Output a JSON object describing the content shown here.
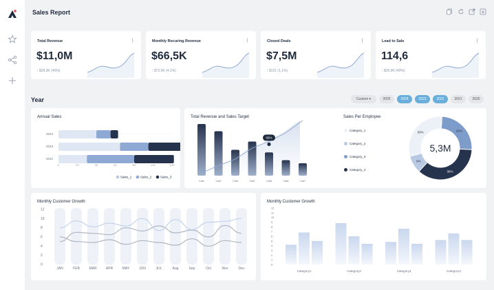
{
  "header": {
    "title": "Sales Report"
  },
  "kpis": [
    {
      "title": "Total Revenue",
      "value": "$11,0M",
      "delta": "$28,3K (40%)"
    },
    {
      "title": "Monthly Recuring Revenue",
      "value": "$66,5K",
      "delta": "$72,5K (4,1%)"
    },
    {
      "title": "Closed Deals",
      "value": "$7,5M",
      "delta": "$121 (1,1%)"
    },
    {
      "title": "Lead to Sale",
      "value": "114,6",
      "delta": "$36,9K (40%)"
    }
  ],
  "year": {
    "label": "Year",
    "filters": [
      "Custom",
      "2025",
      "2024",
      "2023",
      "2022",
      "2021",
      "2020"
    ],
    "active": [
      "2024",
      "2023",
      "2022"
    ]
  },
  "annual_sales": {
    "title": "Annual Sales"
  },
  "revenue_target": {
    "title": "Total Revenue and Sales Target",
    "callout": "65%"
  },
  "sales_per_employee": {
    "title": "Sales Per Employee",
    "center_value": "5,3M",
    "legend": [
      "Category_1",
      "Category_2",
      "Category_3",
      "Category_4"
    ]
  },
  "growth_line": {
    "title": "Monthly Customer Growth"
  },
  "growth_bars": {
    "title": "Monthly Customer Growth"
  },
  "colors": {
    "navy": "#26334d",
    "blue": "#8ea9d3",
    "light": "#dfe7f4",
    "accent": "#6aaedc"
  },
  "chart_data": [
    {
      "type": "bar",
      "orientation": "horizontal",
      "stacked": true,
      "title": "Annual Sales",
      "categories": [
        "2024",
        "2023",
        "2022"
      ],
      "series": [
        {
          "name": "Sales_1",
          "values": [
            40,
            65,
            30
          ]
        },
        {
          "name": "Sales_2",
          "values": [
            15,
            30,
            50
          ]
        },
        {
          "name": "Sales_3",
          "values": [
            8,
            38,
            42
          ]
        }
      ],
      "x_ticks": [
        "0",
        "20",
        "40",
        "60",
        "80",
        "100",
        "120"
      ],
      "legend": "bottom-right"
    },
    {
      "type": "bar",
      "title": "Total Revenue and Sales Target",
      "categories": [
        "Cat1",
        "Cat2",
        "Cat3",
        "Cat4",
        "Cat5",
        "Cat6",
        "Cat7"
      ],
      "values": [
        100,
        86,
        50,
        66,
        45,
        30,
        24
      ],
      "line_values": [
        5,
        18,
        30,
        50,
        62,
        78,
        100
      ],
      "y_right_ticks": [
        "100%",
        "90%",
        "80%",
        "70%",
        "60%",
        "50%",
        "40%",
        "30%",
        "20%",
        "10%",
        "0%"
      ],
      "annotation": "65%"
    },
    {
      "type": "pie",
      "title": "Sales Per Employee",
      "categories": [
        "Category_1",
        "Category_2",
        "Category_3",
        "Category_4"
      ],
      "values": [
        30,
        9,
        25,
        36
      ],
      "labels": [
        "30%",
        "9%",
        "25%",
        "36%"
      ]
    },
    {
      "type": "line",
      "title": "Monthly Customer Growth",
      "categories": [
        "JAN",
        "FEB",
        "MAR",
        "APR",
        "MAY",
        "JUN",
        "JUL",
        "Aug",
        "Sep",
        "Oct",
        "Nov",
        "Dec"
      ],
      "y_ticks": [
        "12",
        "10",
        "8",
        "6",
        "4",
        "2",
        "0"
      ],
      "ylim": [
        0,
        12
      ],
      "series": [
        {
          "values": [
            5.0,
            7.0,
            6.8,
            6.5,
            8.0,
            7.3,
            8.4,
            6.9,
            7.5,
            6.0,
            8.5,
            6.8
          ]
        },
        {
          "values": [
            8.0,
            9.5,
            8.2,
            9.0,
            8.4,
            10.0,
            7.4,
            9.8,
            7.6,
            9.2,
            9.4,
            10.0
          ]
        },
        {
          "values": [
            6.0,
            5.0,
            4.8,
            5.4,
            4.4,
            5.2,
            4.8,
            4.2,
            5.6,
            4.0,
            5.2,
            4.8
          ]
        }
      ]
    },
    {
      "type": "bar",
      "title": "Monthly Customer Growth",
      "categories": [
        "Category1",
        "Category2",
        "Category3",
        "Category4"
      ],
      "series": [
        {
          "values": [
            4.2,
            8.8,
            4.8,
            5.2
          ]
        },
        {
          "values": [
            6.8,
            6.0,
            7.6,
            6.6
          ]
        },
        {
          "values": [
            5.0,
            4.4,
            4.4,
            5.2
          ]
        }
      ],
      "y_ticks": [
        "12",
        "11",
        "10",
        "9",
        "8",
        "7",
        "6",
        "5",
        "4",
        "3",
        "2",
        "1",
        "0"
      ],
      "ylim": [
        0,
        12
      ]
    }
  ]
}
